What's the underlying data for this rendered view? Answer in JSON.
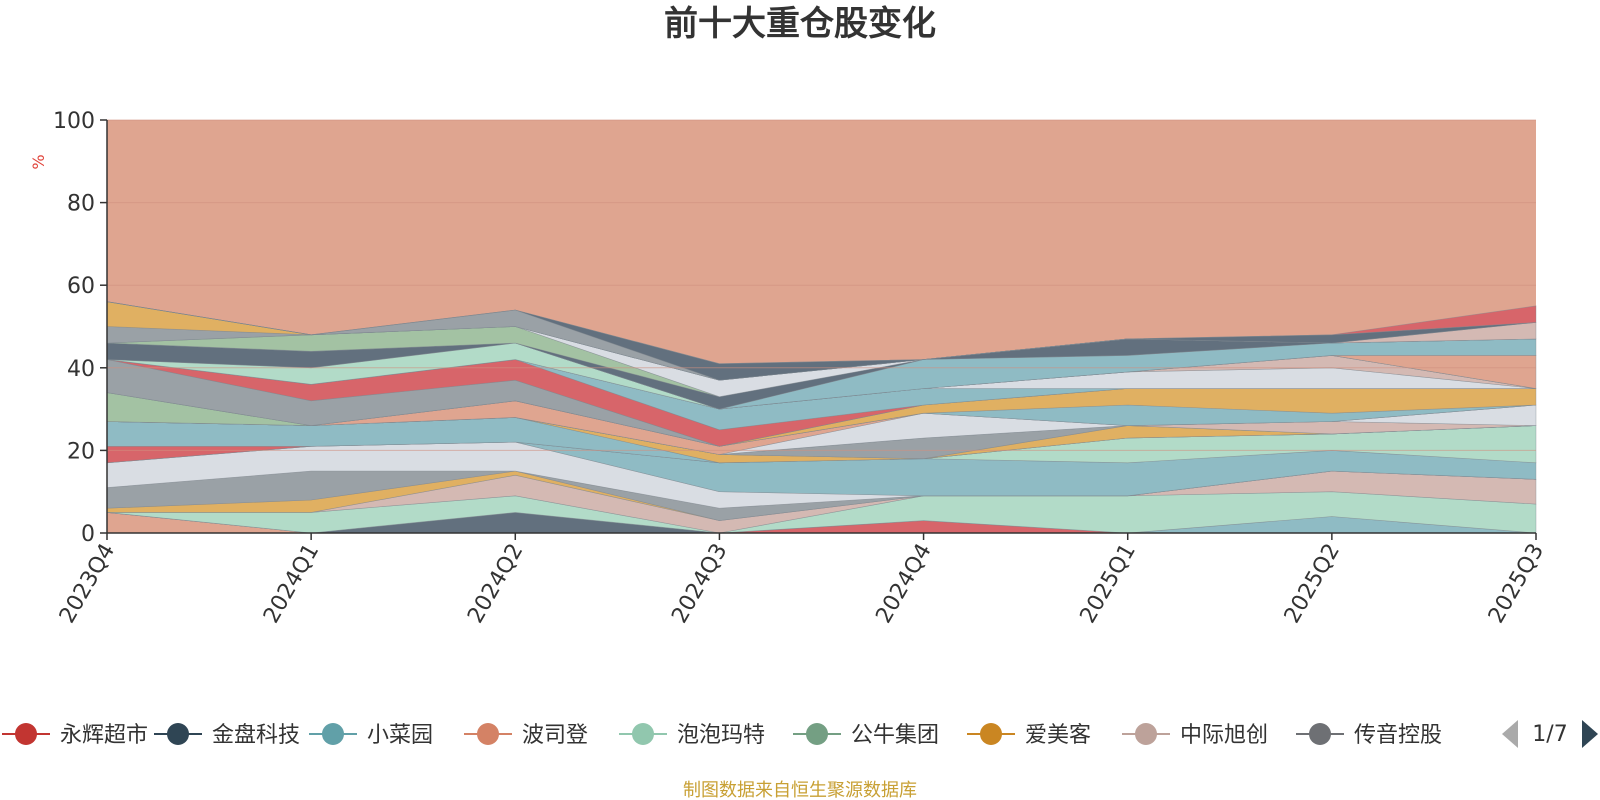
{
  "colors": {
    "background_area": "#dfa590",
    "source_text": "#c8a034",
    "unit_text": "#e0433a",
    "axis": "#333333",
    "grid": "#d08f80"
  },
  "chart_data": {
    "type": "area",
    "title": "前十大重仓股变化",
    "ylabel": "%",
    "ylim": [
      0,
      100
    ],
    "yticks": [
      "0",
      "20",
      "40",
      "60",
      "80",
      "100"
    ],
    "categories": [
      "2023Q4",
      "2024Q1",
      "2024Q2",
      "2024Q3",
      "2024Q4",
      "2025Q1",
      "2025Q2",
      "2025Q3"
    ],
    "background_fill": 100,
    "bands": [
      {
        "color": "#dfa590",
        "values": [
          5,
          0,
          0,
          0,
          0,
          0,
          0,
          0
        ]
      },
      {
        "color": "#62707e",
        "values": [
          0,
          0,
          5,
          0,
          0,
          0,
          0,
          0
        ]
      },
      {
        "color": "#d7656a",
        "values": [
          0,
          0,
          0,
          0,
          3,
          0,
          0,
          0
        ]
      },
      {
        "color": "#8fbbc4",
        "values": [
          0,
          0,
          0,
          0,
          0,
          0,
          4,
          0
        ]
      },
      {
        "color": "#b2dbc8",
        "values": [
          0,
          5,
          4,
          0,
          6,
          9,
          6,
          7
        ]
      },
      {
        "color": "#d4b9b3",
        "values": [
          0,
          0,
          5,
          3,
          0,
          0,
          5,
          6
        ]
      },
      {
        "color": "#e0b062",
        "values": [
          1,
          3,
          1,
          0,
          0,
          0,
          0,
          0
        ]
      },
      {
        "color": "#9aa1a6",
        "values": [
          5,
          7,
          0,
          3,
          0,
          0,
          0,
          0
        ]
      },
      {
        "color": "#d9dde3",
        "values": [
          6,
          6,
          7,
          4,
          0,
          0,
          0,
          0
        ]
      },
      {
        "color": "#8fbbc4",
        "values": [
          0,
          0,
          0,
          7,
          9,
          8,
          5,
          4
        ]
      },
      {
        "color": "#b2dbc8",
        "values": [
          0,
          0,
          0,
          0,
          0,
          6,
          4,
          9
        ]
      },
      {
        "color": "#d7656a",
        "values": [
          4,
          0,
          0,
          0,
          0,
          0,
          0,
          0
        ]
      },
      {
        "color": "#8fbbc4",
        "values": [
          6,
          5,
          6,
          0,
          0,
          0,
          0,
          0
        ]
      },
      {
        "color": "#e0b062",
        "values": [
          0,
          0,
          0,
          2,
          0,
          0,
          0,
          0
        ]
      },
      {
        "color": "#e0b062",
        "values": [
          0,
          0,
          0,
          0,
          0,
          3,
          0,
          0
        ]
      },
      {
        "color": "#9aa1a6",
        "values": [
          0,
          0,
          0,
          0,
          5,
          0,
          0,
          0
        ]
      },
      {
        "color": "#d4b9b3",
        "values": [
          0,
          0,
          0,
          0,
          0,
          0,
          3,
          0
        ]
      },
      {
        "color": "#d9dde3",
        "values": [
          0,
          0,
          0,
          0,
          6,
          0,
          0,
          5
        ]
      },
      {
        "color": "#dfa590",
        "values": [
          0,
          0,
          4,
          2,
          0,
          0,
          0,
          0
        ]
      },
      {
        "color": "#a3c2a3",
        "values": [
          7,
          0,
          0,
          0,
          0,
          0,
          0,
          0
        ]
      },
      {
        "color": "#8fbbc4",
        "values": [
          0,
          0,
          0,
          0,
          0,
          5,
          2,
          0
        ]
      },
      {
        "color": "#e0b062",
        "values": [
          0,
          0,
          0,
          0,
          2,
          4,
          6,
          4
        ]
      },
      {
        "color": "#9aa1a6",
        "values": [
          8,
          6,
          5,
          0,
          0,
          0,
          0,
          0
        ]
      },
      {
        "color": "#d7656a",
        "values": [
          0,
          4,
          5,
          4,
          0,
          0,
          0,
          0
        ]
      },
      {
        "color": "#8fbbc4",
        "values": [
          0,
          0,
          0,
          5,
          4,
          0,
          0,
          0
        ]
      },
      {
        "color": "#d9dde3",
        "values": [
          0,
          0,
          0,
          0,
          0,
          4,
          5,
          0
        ]
      },
      {
        "color": "#d4b9b3",
        "values": [
          0,
          0,
          0,
          0,
          0,
          0,
          3,
          0
        ]
      },
      {
        "color": "#b2dbc8",
        "values": [
          0,
          4,
          4,
          0,
          0,
          0,
          0,
          0
        ]
      },
      {
        "color": "#62707e",
        "values": [
          4,
          4,
          0,
          0,
          0,
          0,
          0,
          0
        ]
      },
      {
        "color": "#dfa590",
        "values": [
          0,
          0,
          0,
          0,
          0,
          0,
          0,
          8
        ]
      },
      {
        "color": "#8fbbc4",
        "values": [
          0,
          0,
          0,
          0,
          7,
          4,
          3,
          4
        ]
      },
      {
        "color": "#62707e",
        "values": [
          0,
          0,
          0,
          3,
          0,
          4,
          0,
          0
        ]
      },
      {
        "color": "#a3c2a3",
        "values": [
          0,
          4,
          4,
          0,
          0,
          0,
          0,
          0
        ]
      },
      {
        "color": "#d9dde3",
        "values": [
          0,
          0,
          0,
          4,
          0,
          0,
          0,
          0
        ]
      },
      {
        "color": "#9aa1a6",
        "values": [
          4,
          0,
          0,
          0,
          0,
          0,
          0,
          0
        ]
      },
      {
        "color": "#e0b062",
        "values": [
          6,
          0,
          0,
          0,
          0,
          0,
          0,
          0
        ]
      },
      {
        "color": "#d4b9b3",
        "values": [
          0,
          0,
          0,
          0,
          0,
          0,
          0,
          4
        ]
      },
      {
        "color": "#9aa1a6",
        "values": [
          0,
          0,
          4,
          0,
          0,
          0,
          0,
          0
        ]
      },
      {
        "color": "#62707e",
        "values": [
          0,
          0,
          0,
          4,
          0,
          0,
          2,
          0
        ]
      },
      {
        "color": "#d7656a",
        "values": [
          0,
          0,
          0,
          0,
          0,
          0,
          0,
          4
        ]
      }
    ],
    "legend": {
      "items": [
        {
          "name": "永辉超市",
          "color": "#c23531"
        },
        {
          "name": "金盘科技",
          "color": "#2f4554"
        },
        {
          "name": "小菜园",
          "color": "#61a0a8"
        },
        {
          "name": "波司登",
          "color": "#d48265"
        },
        {
          "name": "泡泡玛特",
          "color": "#91c7ae"
        },
        {
          "name": "公牛集团",
          "color": "#749f83"
        },
        {
          "name": "爱美客",
          "color": "#ca8622"
        },
        {
          "name": "中际旭创",
          "color": "#bda29a"
        },
        {
          "name": "传音控股",
          "color": "#6e7074"
        }
      ],
      "page": "1/7"
    },
    "source": "制图数据来自恒生聚源数据库"
  }
}
